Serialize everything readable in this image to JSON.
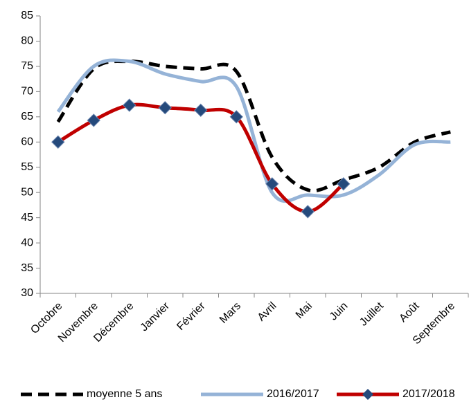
{
  "chart_data": {
    "type": "line",
    "categories": [
      "Octobre",
      "Novembre",
      "Décembre",
      "Janvier",
      "Février",
      "Mars",
      "Avril",
      "Mai",
      "Juin",
      "Juillet",
      "Août",
      "Septembre"
    ],
    "series": [
      {
        "name": "moyenne 5 ans",
        "color": "#000000",
        "dashed": true,
        "values": [
          64,
          74.5,
          76,
          75,
          74.5,
          74,
          57,
          50.5,
          52.5,
          55,
          60,
          62
        ]
      },
      {
        "name": "2016/2017",
        "color": "#95b3d7",
        "values": [
          66,
          75,
          76,
          73.5,
          72,
          71,
          50,
          49.5,
          49.5,
          53.5,
          59.5,
          60
        ]
      },
      {
        "name": "2017/2018",
        "color": "#c00000",
        "marker": "diamond",
        "marker_color": "#254a7c",
        "values": [
          60,
          64.3,
          67.3,
          66.8,
          66.3,
          65,
          51.7,
          46.2,
          51.7,
          null,
          null,
          null
        ]
      }
    ],
    "ylim": [
      30,
      85
    ],
    "yticks": [
      30,
      35,
      40,
      45,
      50,
      55,
      60,
      65,
      70,
      75,
      80,
      85
    ],
    "grid": false,
    "legend": "bottom"
  }
}
